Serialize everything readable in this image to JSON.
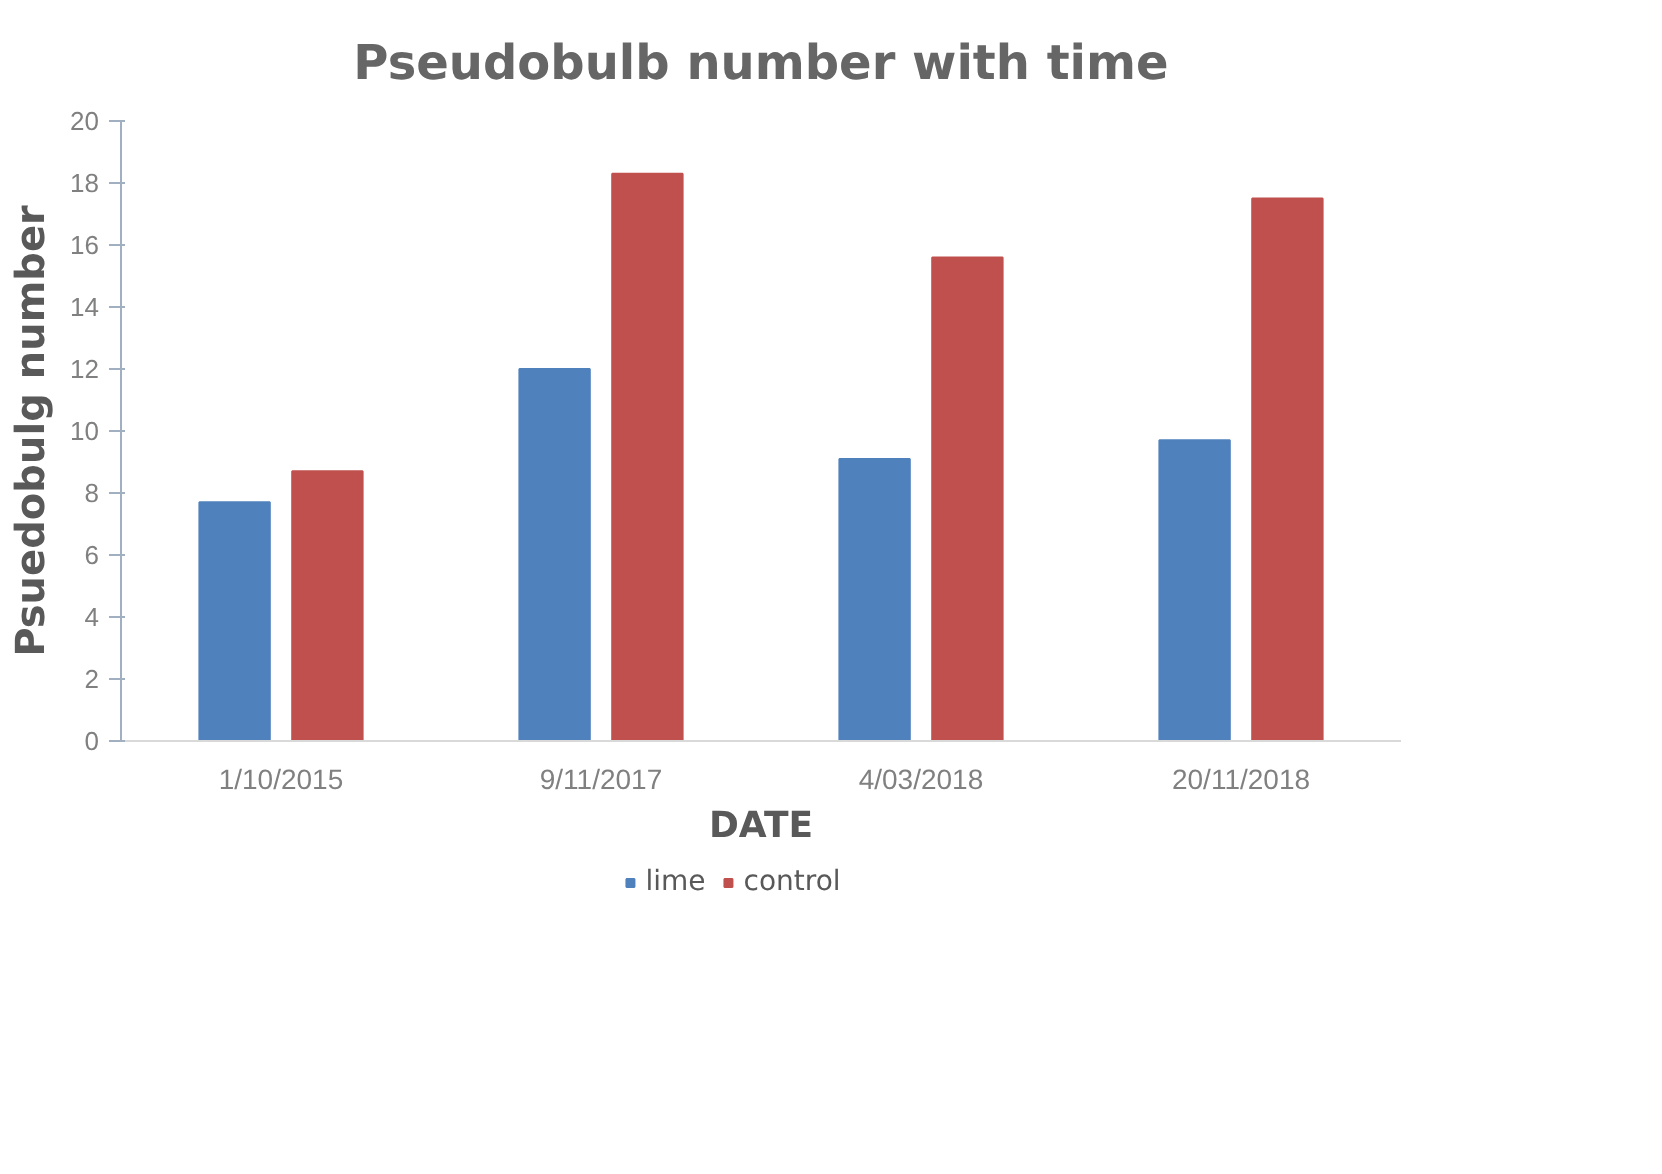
{
  "chart_data": {
    "type": "bar",
    "title": "Pseudobulb number with time",
    "xlabel": "DATE",
    "ylabel": "Psuedobulg number",
    "categories": [
      "1/10/2015",
      "9/11/2017",
      "4/03/2018",
      "20/11/2018"
    ],
    "series": [
      {
        "name": "lime",
        "color": "#4f81bd",
        "values": [
          7.7,
          12.0,
          9.1,
          9.7
        ]
      },
      {
        "name": "control",
        "color": "#c0504d",
        "values": [
          8.7,
          18.3,
          15.6,
          17.5
        ]
      }
    ],
    "ylim": [
      0,
      20
    ],
    "yticks": [
      0,
      2,
      4,
      6,
      8,
      10,
      12,
      14,
      16,
      18,
      20
    ],
    "grid": false,
    "legend": "bottom"
  }
}
